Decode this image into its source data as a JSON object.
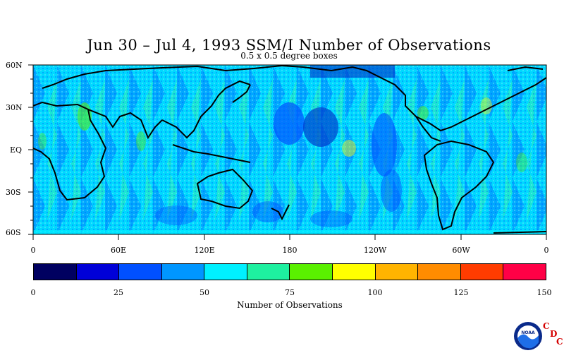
{
  "title": "Jun 30 – Jul 4, 1993 SSM/I Number of Observations",
  "subtitle": "0.5 x 0.5 degree boxes",
  "lat_labels": [
    "60N",
    "30N",
    "EQ",
    "30S",
    "60S"
  ],
  "lon_labels": [
    "0",
    "60E",
    "120E",
    "180",
    "120W",
    "60W",
    "0"
  ],
  "colorbar": {
    "title": "Number of Observations",
    "ticks": [
      "0",
      "25",
      "50",
      "75",
      "100",
      "125",
      "150"
    ],
    "colors": [
      "#000060",
      "#0000d8",
      "#0050ff",
      "#0096ff",
      "#00f0ff",
      "#1ef0a0",
      "#5af000",
      "#ffff00",
      "#ffb400",
      "#ff8c00",
      "#ff3c00",
      "#ff0046"
    ]
  },
  "logo": {
    "name": "noaa-logo",
    "text": "NOAA",
    "cdc_letters": [
      "C",
      "D",
      "C"
    ]
  },
  "map": {
    "type": "global-swath-map",
    "lon_range": [
      0,
      360
    ],
    "lat_range": [
      -60,
      60
    ],
    "value_range": [
      0,
      150
    ],
    "dominant_colors": [
      "#00f0ff",
      "#1ef0a0",
      "#0096ff",
      "#0050ff"
    ]
  }
}
